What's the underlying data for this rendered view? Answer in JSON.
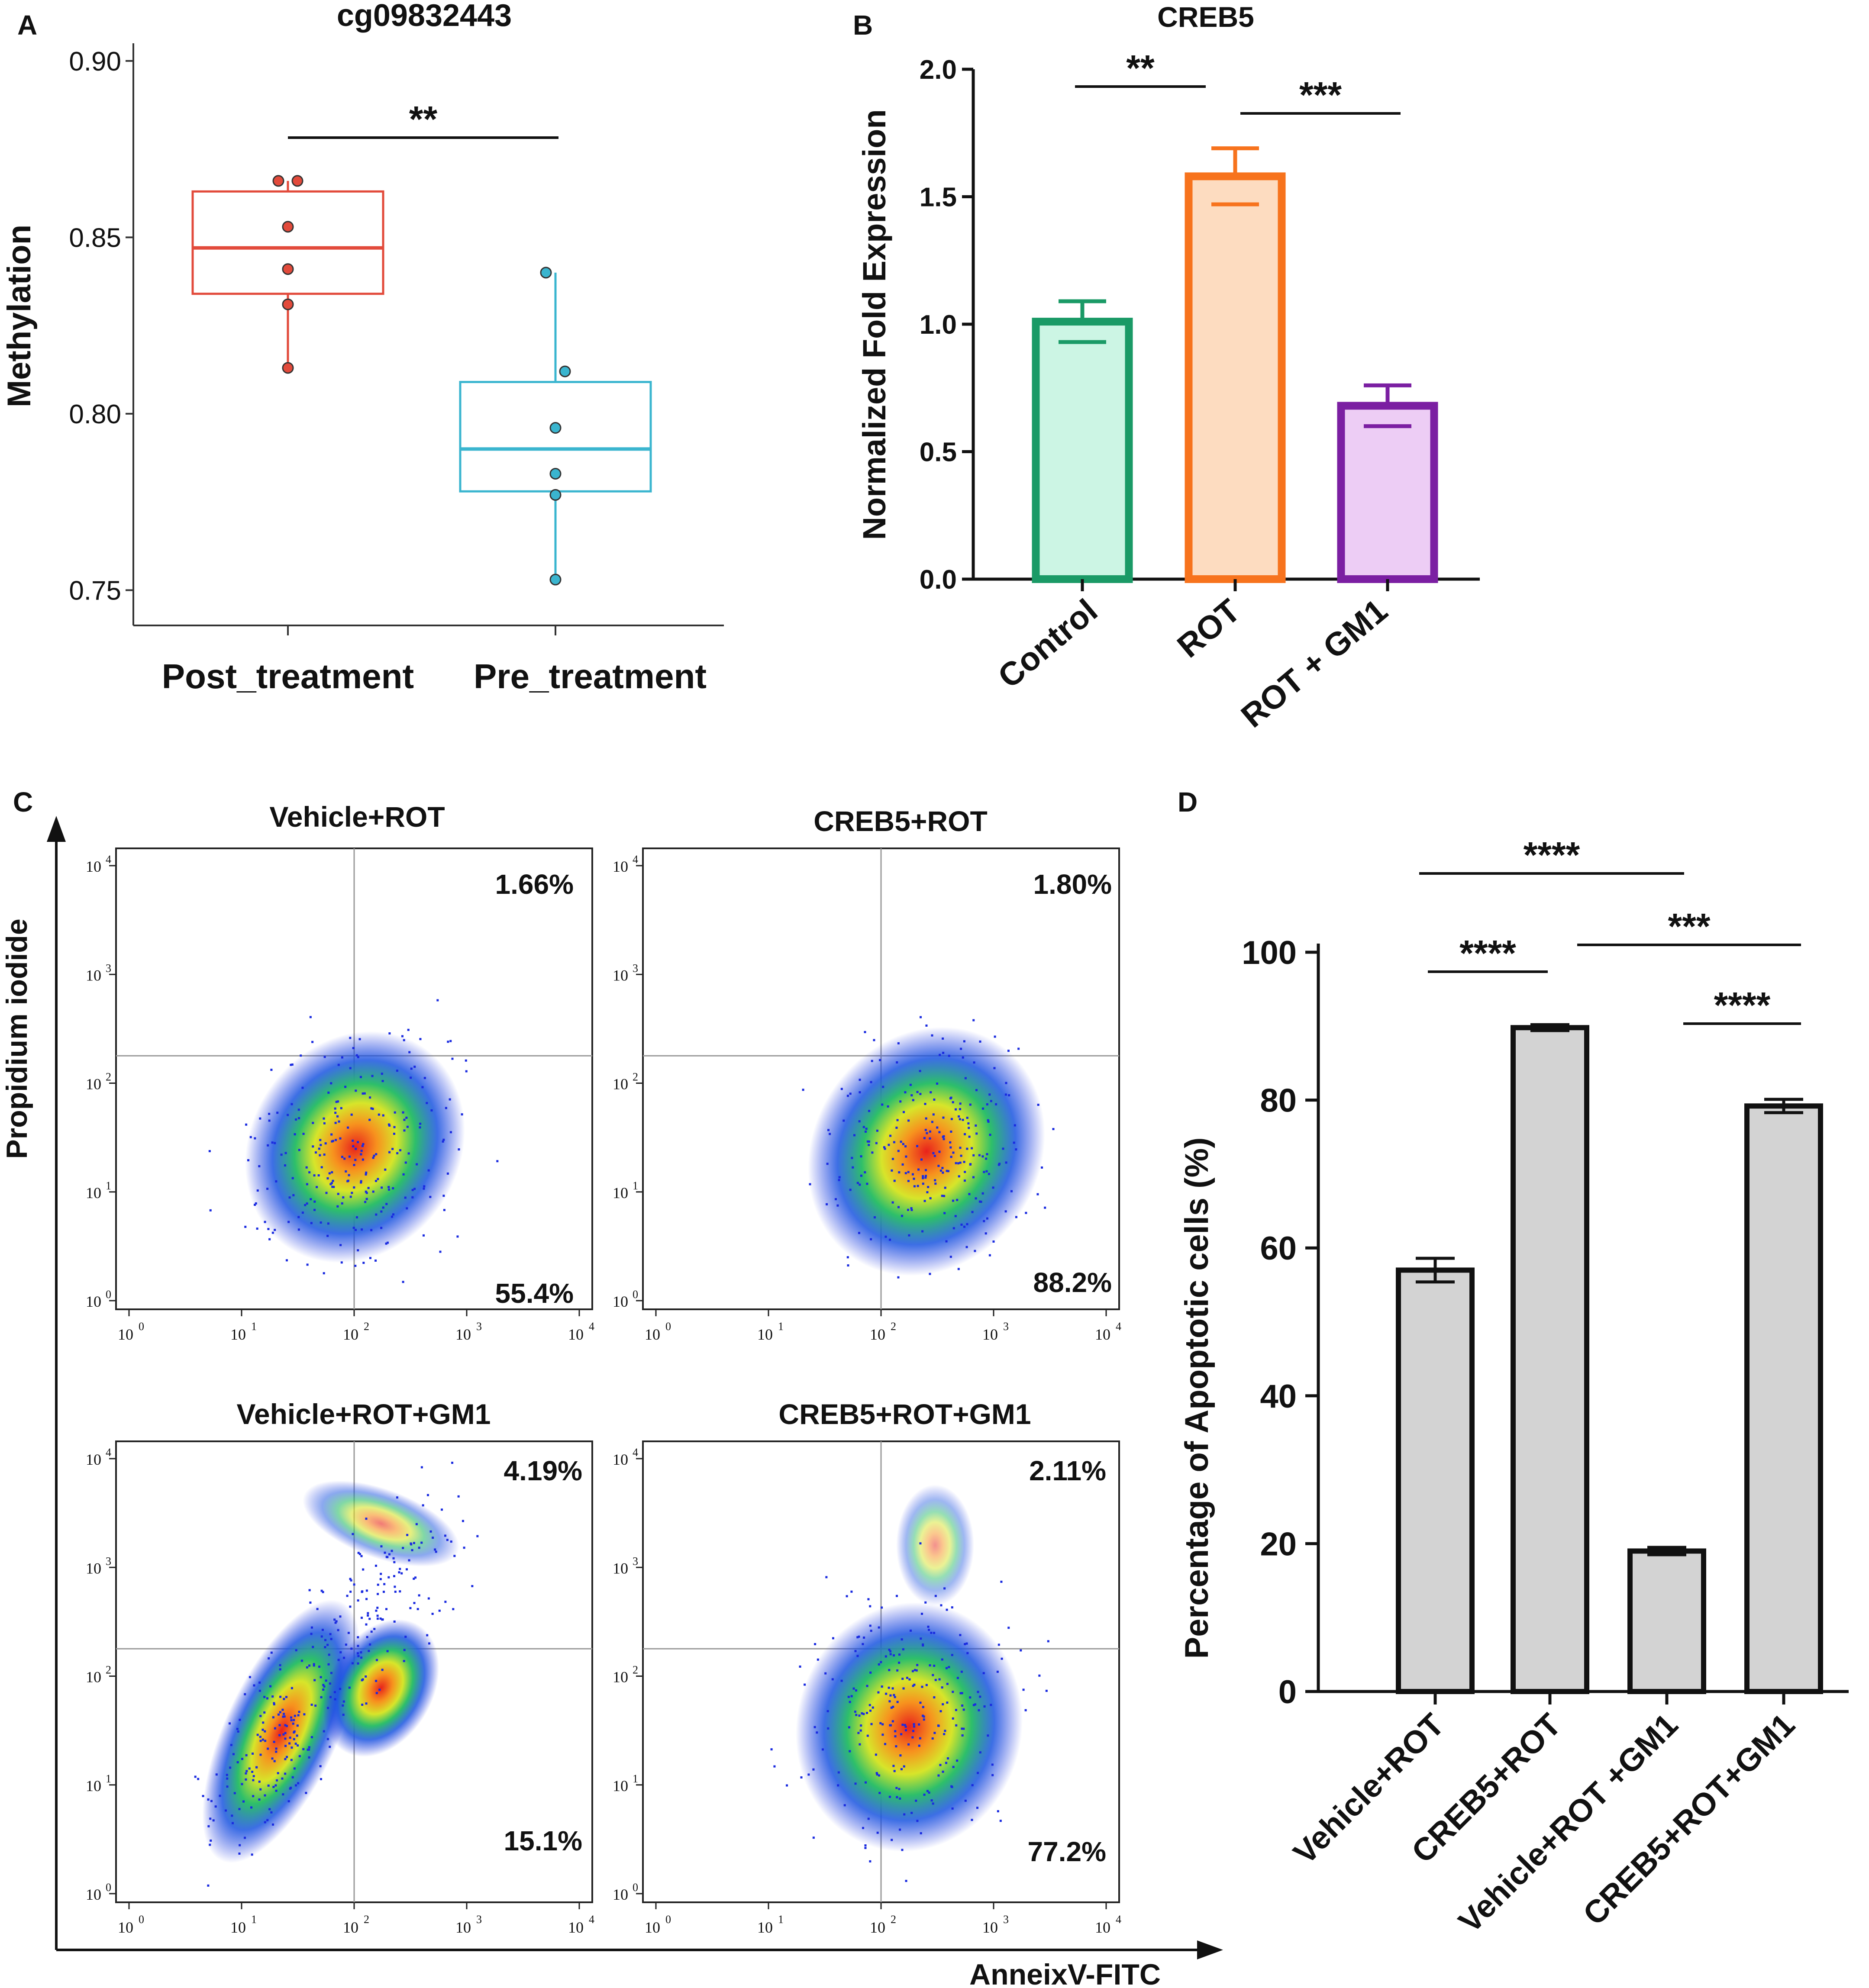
{
  "chart_data": [
    {
      "panel": "A",
      "type": "box",
      "title": "cg09832443",
      "ylabel": "Methylation",
      "ylim": [
        0.74,
        0.905
      ],
      "yticks": [
        "0.75",
        "0.80",
        "0.85",
        "0.90"
      ],
      "categories": [
        "Post_treatment",
        "Pre_treatment"
      ],
      "colors": [
        "#E24A3B",
        "#3AB5CF"
      ],
      "boxes": [
        {
          "name": "Post_treatment",
          "q1": 0.834,
          "median": 0.847,
          "q3": 0.863,
          "points": [
            0.866,
            0.866,
            0.853,
            0.841,
            0.831,
            0.813
          ]
        },
        {
          "name": "Pre_treatment",
          "q1": 0.778,
          "median": 0.79,
          "q3": 0.809,
          "points": [
            0.84,
            0.812,
            0.796,
            0.783,
            0.777,
            0.753
          ]
        }
      ],
      "significance": [
        {
          "label": "**",
          "from": 0,
          "to": 1
        }
      ]
    },
    {
      "panel": "B",
      "type": "bar",
      "title": "CREB5",
      "ylabel": "Normalized Fold Expression",
      "ylim": [
        0,
        2.0
      ],
      "yticks": [
        "0.0",
        "0.5",
        "1.0",
        "1.5",
        "2.0"
      ],
      "categories": [
        "Control",
        "ROT",
        "ROT + GM1"
      ],
      "values": [
        1.01,
        1.58,
        0.68
      ],
      "errors": [
        0.08,
        0.11,
        0.08
      ],
      "edge_colors": [
        "#1A9A66",
        "#F7731D",
        "#7B1FA2"
      ],
      "fill_colors": [
        "#CCF5E4",
        "#FDDCC0",
        "#EDCDF5"
      ],
      "significance": [
        {
          "label": "**",
          "from": 0,
          "to": 1
        },
        {
          "label": "***",
          "from": 1,
          "to": 2
        }
      ]
    },
    {
      "panel": "C",
      "type": "scatter",
      "ylabel": "Propidium iodide",
      "xlabel": "AnneixV-FITC",
      "scale": "log",
      "ticks": [
        "10",
        "10",
        "10",
        "10",
        "10"
      ],
      "tick_exponents": [
        "0",
        "1",
        "2",
        "3",
        "4"
      ],
      "plots": [
        {
          "title": "Vehicle+ROT",
          "upper_right": "1.66%",
          "lower_right": "55.4%"
        },
        {
          "title": "CREB5+ROT",
          "upper_right": "1.80%",
          "lower_right": "88.2%"
        },
        {
          "title": "Vehicle+ROT+GM1",
          "upper_right": "4.19%",
          "lower_right": "15.1%"
        },
        {
          "title": "CREB5+ROT+GM1",
          "upper_right": "2.11%",
          "lower_right": "77.2%"
        }
      ]
    },
    {
      "panel": "D",
      "type": "bar",
      "ylabel": "Percentage of Apoptotic cells (%)",
      "ylim": [
        0,
        100
      ],
      "yticks": [
        "0",
        "20",
        "40",
        "60",
        "80",
        "100"
      ],
      "categories": [
        "Vehicle+ROT",
        "CREB5+ROT",
        "Vehicle+ROT +GM1",
        "CREB5+ROT+GM1"
      ],
      "values": [
        57.0,
        89.8,
        19.0,
        79.2
      ],
      "errors": [
        1.6,
        0.4,
        0.5,
        0.9
      ],
      "fill_color": "#D3D3D3",
      "significance": [
        {
          "label": "****",
          "from": 0,
          "to": 2
        },
        {
          "label": "***",
          "from": 1,
          "to": 3
        },
        {
          "label": "****",
          "from": 0,
          "to": 1
        },
        {
          "label": "****",
          "from": 2,
          "to": 3
        }
      ]
    }
  ],
  "panel_labels": [
    "A",
    "B",
    "C",
    "D"
  ]
}
